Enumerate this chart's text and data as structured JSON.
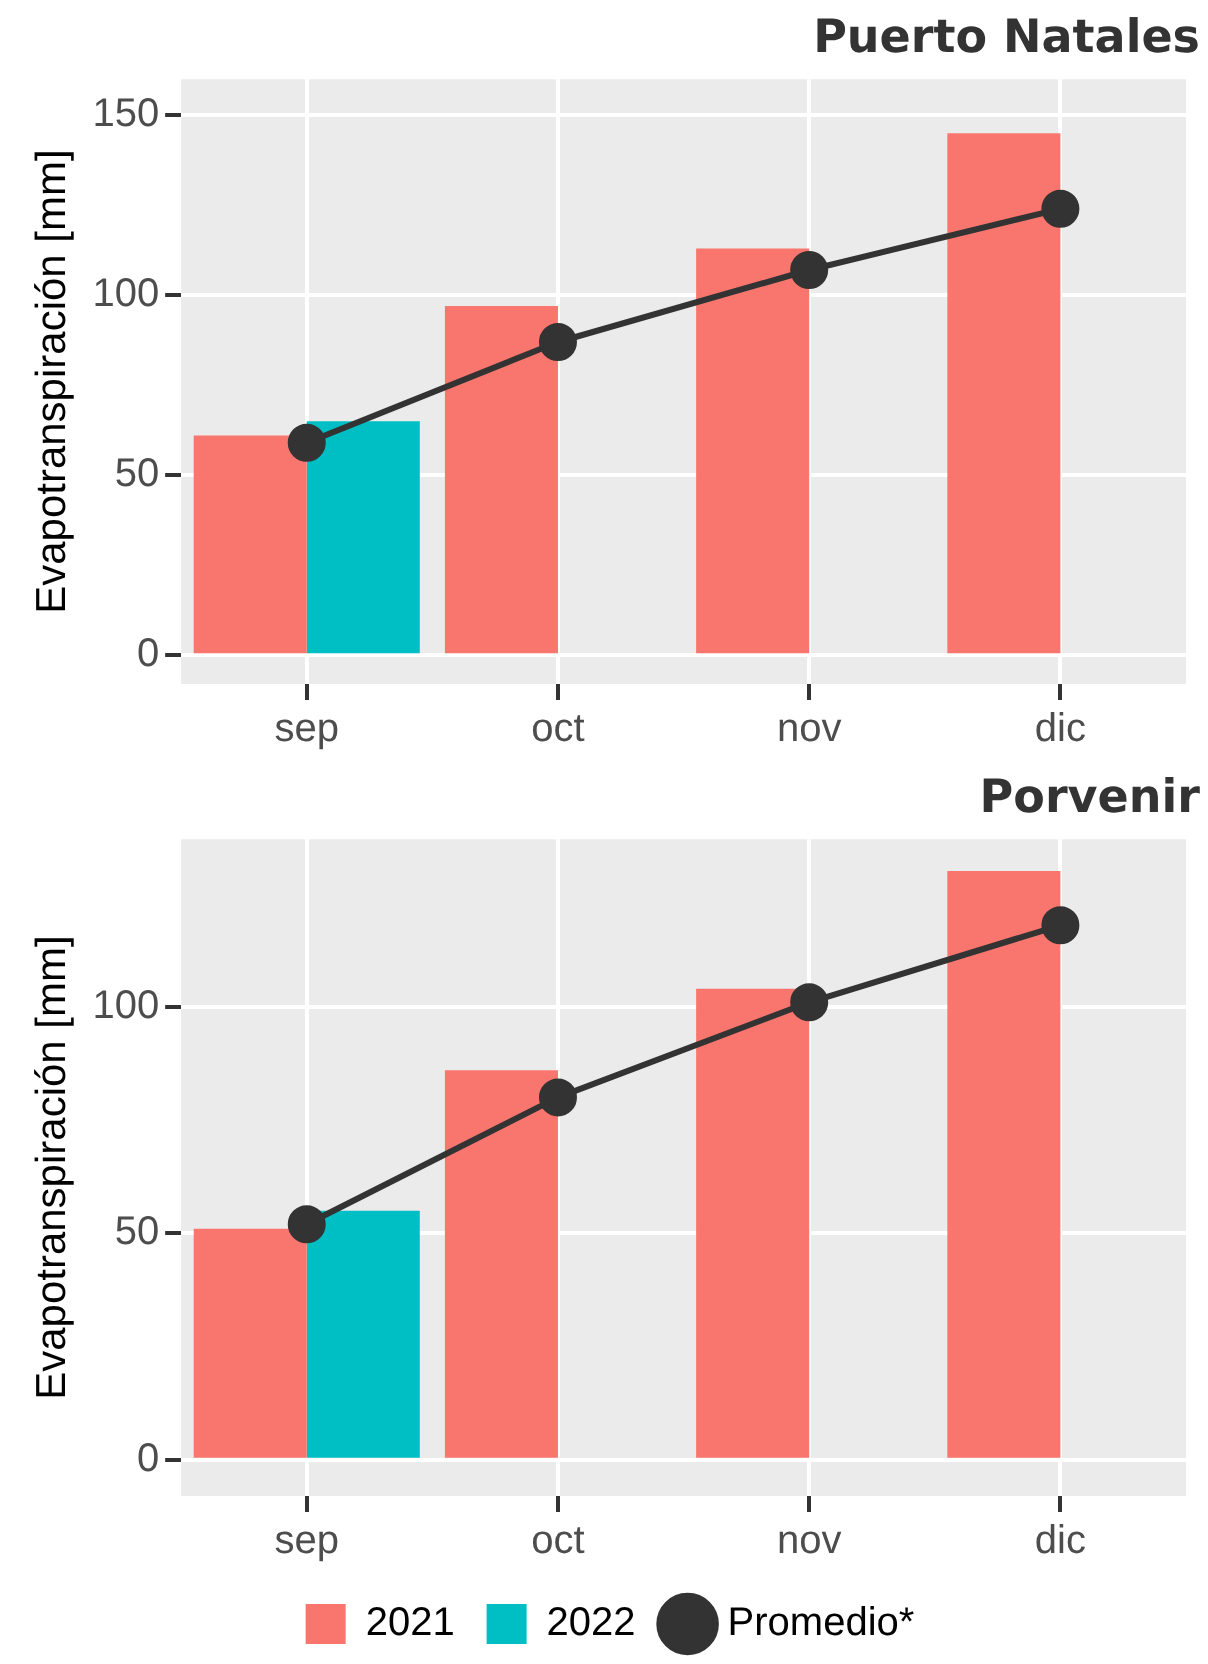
{
  "chart_data": [
    {
      "type": "bar",
      "title": "Puerto Natales",
      "ylabel": "Evapotranspiración [mm]",
      "categories": [
        "sep",
        "oct",
        "nov",
        "dic"
      ],
      "series": [
        {
          "color": "#f8766d",
          "values": [
            61,
            97,
            113,
            145
          ]
        },
        {
          "color": "#00bfc4",
          "values": [
            65,
            null,
            null,
            null
          ]
        },
        {
          "type": "line",
          "color": "#333333",
          "values": [
            59,
            87,
            107,
            124
          ]
        }
      ],
      "ylim": [
        -8,
        160
      ],
      "yticks": [
        0,
        50,
        100,
        150
      ],
      "grid": true,
      "legend": false,
      "marker": "circle"
    },
    {
      "type": "bar",
      "title": "Porvenir",
      "ylabel": "Evapotranspiración [mm]",
      "categories": [
        "sep",
        "oct",
        "nov",
        "dic"
      ],
      "series": [
        {
          "name": "2021",
          "color": "#f8766d",
          "values": [
            51,
            86,
            104,
            130
          ]
        },
        {
          "name": "2022",
          "color": "#00bfc4",
          "values": [
            55,
            null,
            null,
            null
          ]
        },
        {
          "name": "Promedio*",
          "type": "line",
          "color": "#333333",
          "values": [
            52,
            80,
            101,
            118
          ]
        }
      ],
      "ylim": [
        -8,
        137
      ],
      "yticks": [
        0,
        50,
        100
      ],
      "grid": true,
      "legend": "bottom",
      "marker": "circle"
    }
  ]
}
